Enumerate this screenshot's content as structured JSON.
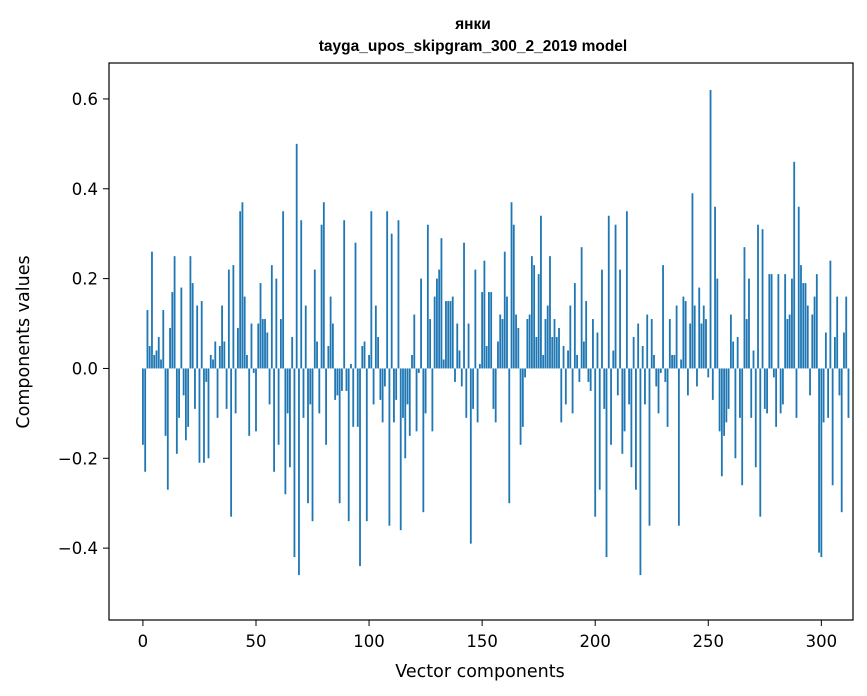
{
  "chart_data": {
    "type": "bar",
    "title": "янки",
    "subtitle": "tayga_upos_skipgram_300_2_2019 model",
    "xlabel": "Vector components",
    "ylabel": "Components values",
    "xlim": [
      -15,
      314
    ],
    "ylim": [
      -0.56,
      0.68
    ],
    "xticks": [
      0,
      50,
      100,
      150,
      200,
      250,
      300
    ],
    "xtick_labels": [
      "0",
      "50",
      "100",
      "150",
      "200",
      "250",
      "300"
    ],
    "yticks": [
      -0.4,
      -0.2,
      0.0,
      0.2,
      0.4,
      0.6
    ],
    "ytick_labels": [
      "−0.4",
      "−0.2",
      "0.0",
      "0.2",
      "0.4",
      "0.6"
    ],
    "bar_color": "#1f77b4",
    "grid": false,
    "series": [
      {
        "name": "янки",
        "x_start": 0,
        "values": [
          -0.17,
          -0.23,
          0.13,
          0.05,
          0.26,
          0.03,
          0.04,
          0.07,
          0.02,
          0.13,
          -0.15,
          -0.27,
          0.09,
          0.17,
          0.25,
          -0.19,
          -0.11,
          0.18,
          -0.06,
          -0.16,
          -0.13,
          0.25,
          0.19,
          -0.09,
          0.14,
          -0.21,
          0.15,
          -0.21,
          -0.03,
          -0.2,
          0.03,
          0.02,
          0.06,
          -0.11,
          0.05,
          0.14,
          0.06,
          -0.09,
          0.22,
          -0.33,
          0.23,
          -0.1,
          0.09,
          0.35,
          0.37,
          0.16,
          0.03,
          -0.15,
          0.1,
          -0.01,
          -0.14,
          0.1,
          0.19,
          0.11,
          0.11,
          0.08,
          -0.08,
          0.23,
          -0.23,
          0.2,
          -0.17,
          0.11,
          0.35,
          -0.28,
          -0.1,
          -0.22,
          0.07,
          -0.42,
          0.5,
          -0.46,
          0.33,
          -0.11,
          0.14,
          -0.3,
          -0.08,
          -0.34,
          0.22,
          0.06,
          -0.1,
          0.32,
          0.37,
          -0.17,
          0.05,
          0.16,
          0.1,
          -0.07,
          -0.06,
          -0.3,
          -0.05,
          0.33,
          -0.05,
          -0.34,
          0.01,
          -0.13,
          0.28,
          -0.13,
          -0.44,
          0.05,
          0.06,
          -0.34,
          0.03,
          0.35,
          -0.08,
          0.14,
          0.07,
          -0.07,
          -0.12,
          -0.04,
          0.35,
          -0.35,
          0.3,
          -0.12,
          -0.07,
          0.33,
          -0.36,
          -0.11,
          -0.2,
          -0.08,
          -0.15,
          0.03,
          0.12,
          -0.14,
          -0.01,
          0.2,
          -0.32,
          -0.1,
          0.32,
          0.11,
          -0.14,
          0.16,
          0.2,
          0.22,
          0.29,
          0.02,
          0.15,
          0.15,
          0.15,
          0.16,
          -0.03,
          0.1,
          0.04,
          -0.04,
          0.28,
          -0.11,
          0.1,
          -0.39,
          -0.09,
          0.22,
          -0.12,
          0.01,
          0.17,
          0.24,
          0.05,
          0.17,
          0.17,
          -0.09,
          -0.12,
          0.06,
          0.12,
          0.11,
          0.26,
          0.16,
          -0.3,
          0.37,
          0.32,
          0.12,
          0.09,
          -0.17,
          -0.13,
          -0.02,
          0.11,
          0.12,
          0.25,
          0.23,
          0.07,
          0.21,
          0.34,
          0.03,
          0.11,
          0.14,
          0.25,
          0.07,
          0.11,
          0.07,
          0.09,
          -0.12,
          0.05,
          -0.08,
          0.04,
          0.14,
          -0.1,
          0.19,
          0.03,
          -0.03,
          0.27,
          0.06,
          0.15,
          -0.03,
          -0.05,
          0.11,
          -0.33,
          0.08,
          -0.27,
          0.22,
          -0.09,
          -0.42,
          0.34,
          -0.17,
          0.04,
          0.32,
          -0.06,
          0.22,
          -0.19,
          -0.14,
          0.35,
          -0.08,
          -0.22,
          0.07,
          -0.27,
          0.1,
          -0.46,
          0.05,
          -0.08,
          0.12,
          -0.35,
          0.11,
          0.03,
          -0.04,
          -0.1,
          -0.01,
          0.23,
          -0.03,
          -0.13,
          0.11,
          0.03,
          0.03,
          0.14,
          -0.35,
          0.02,
          0.16,
          0.15,
          -0.06,
          0.1,
          0.39,
          0.14,
          -0.04,
          0.18,
          0.1,
          0.14,
          0.11,
          -0.02,
          0.62,
          -0.07,
          0.36,
          0.2,
          -0.14,
          -0.24,
          -0.15,
          -0.12,
          -0.09,
          0.12,
          0.06,
          -0.2,
          0.07,
          -0.11,
          -0.26,
          0.27,
          0.11,
          0.2,
          -0.11,
          0.04,
          -0.22,
          0.32,
          -0.33,
          0.31,
          -0.09,
          -0.1,
          0.21,
          0.21,
          -0.02,
          -0.13,
          0.21,
          -0.1,
          -0.08,
          0.21,
          0.11,
          0.12,
          0.2,
          0.46,
          -0.11,
          0.36,
          0.23,
          0.19,
          0.19,
          0.14,
          -0.06,
          0.12,
          0.16,
          0.21,
          -0.41,
          -0.42,
          -0.12,
          0.08,
          -0.11,
          0.24,
          -0.26,
          0.07,
          0.16,
          -0.06,
          -0.32,
          0.08,
          0.16,
          -0.11
        ]
      }
    ]
  }
}
